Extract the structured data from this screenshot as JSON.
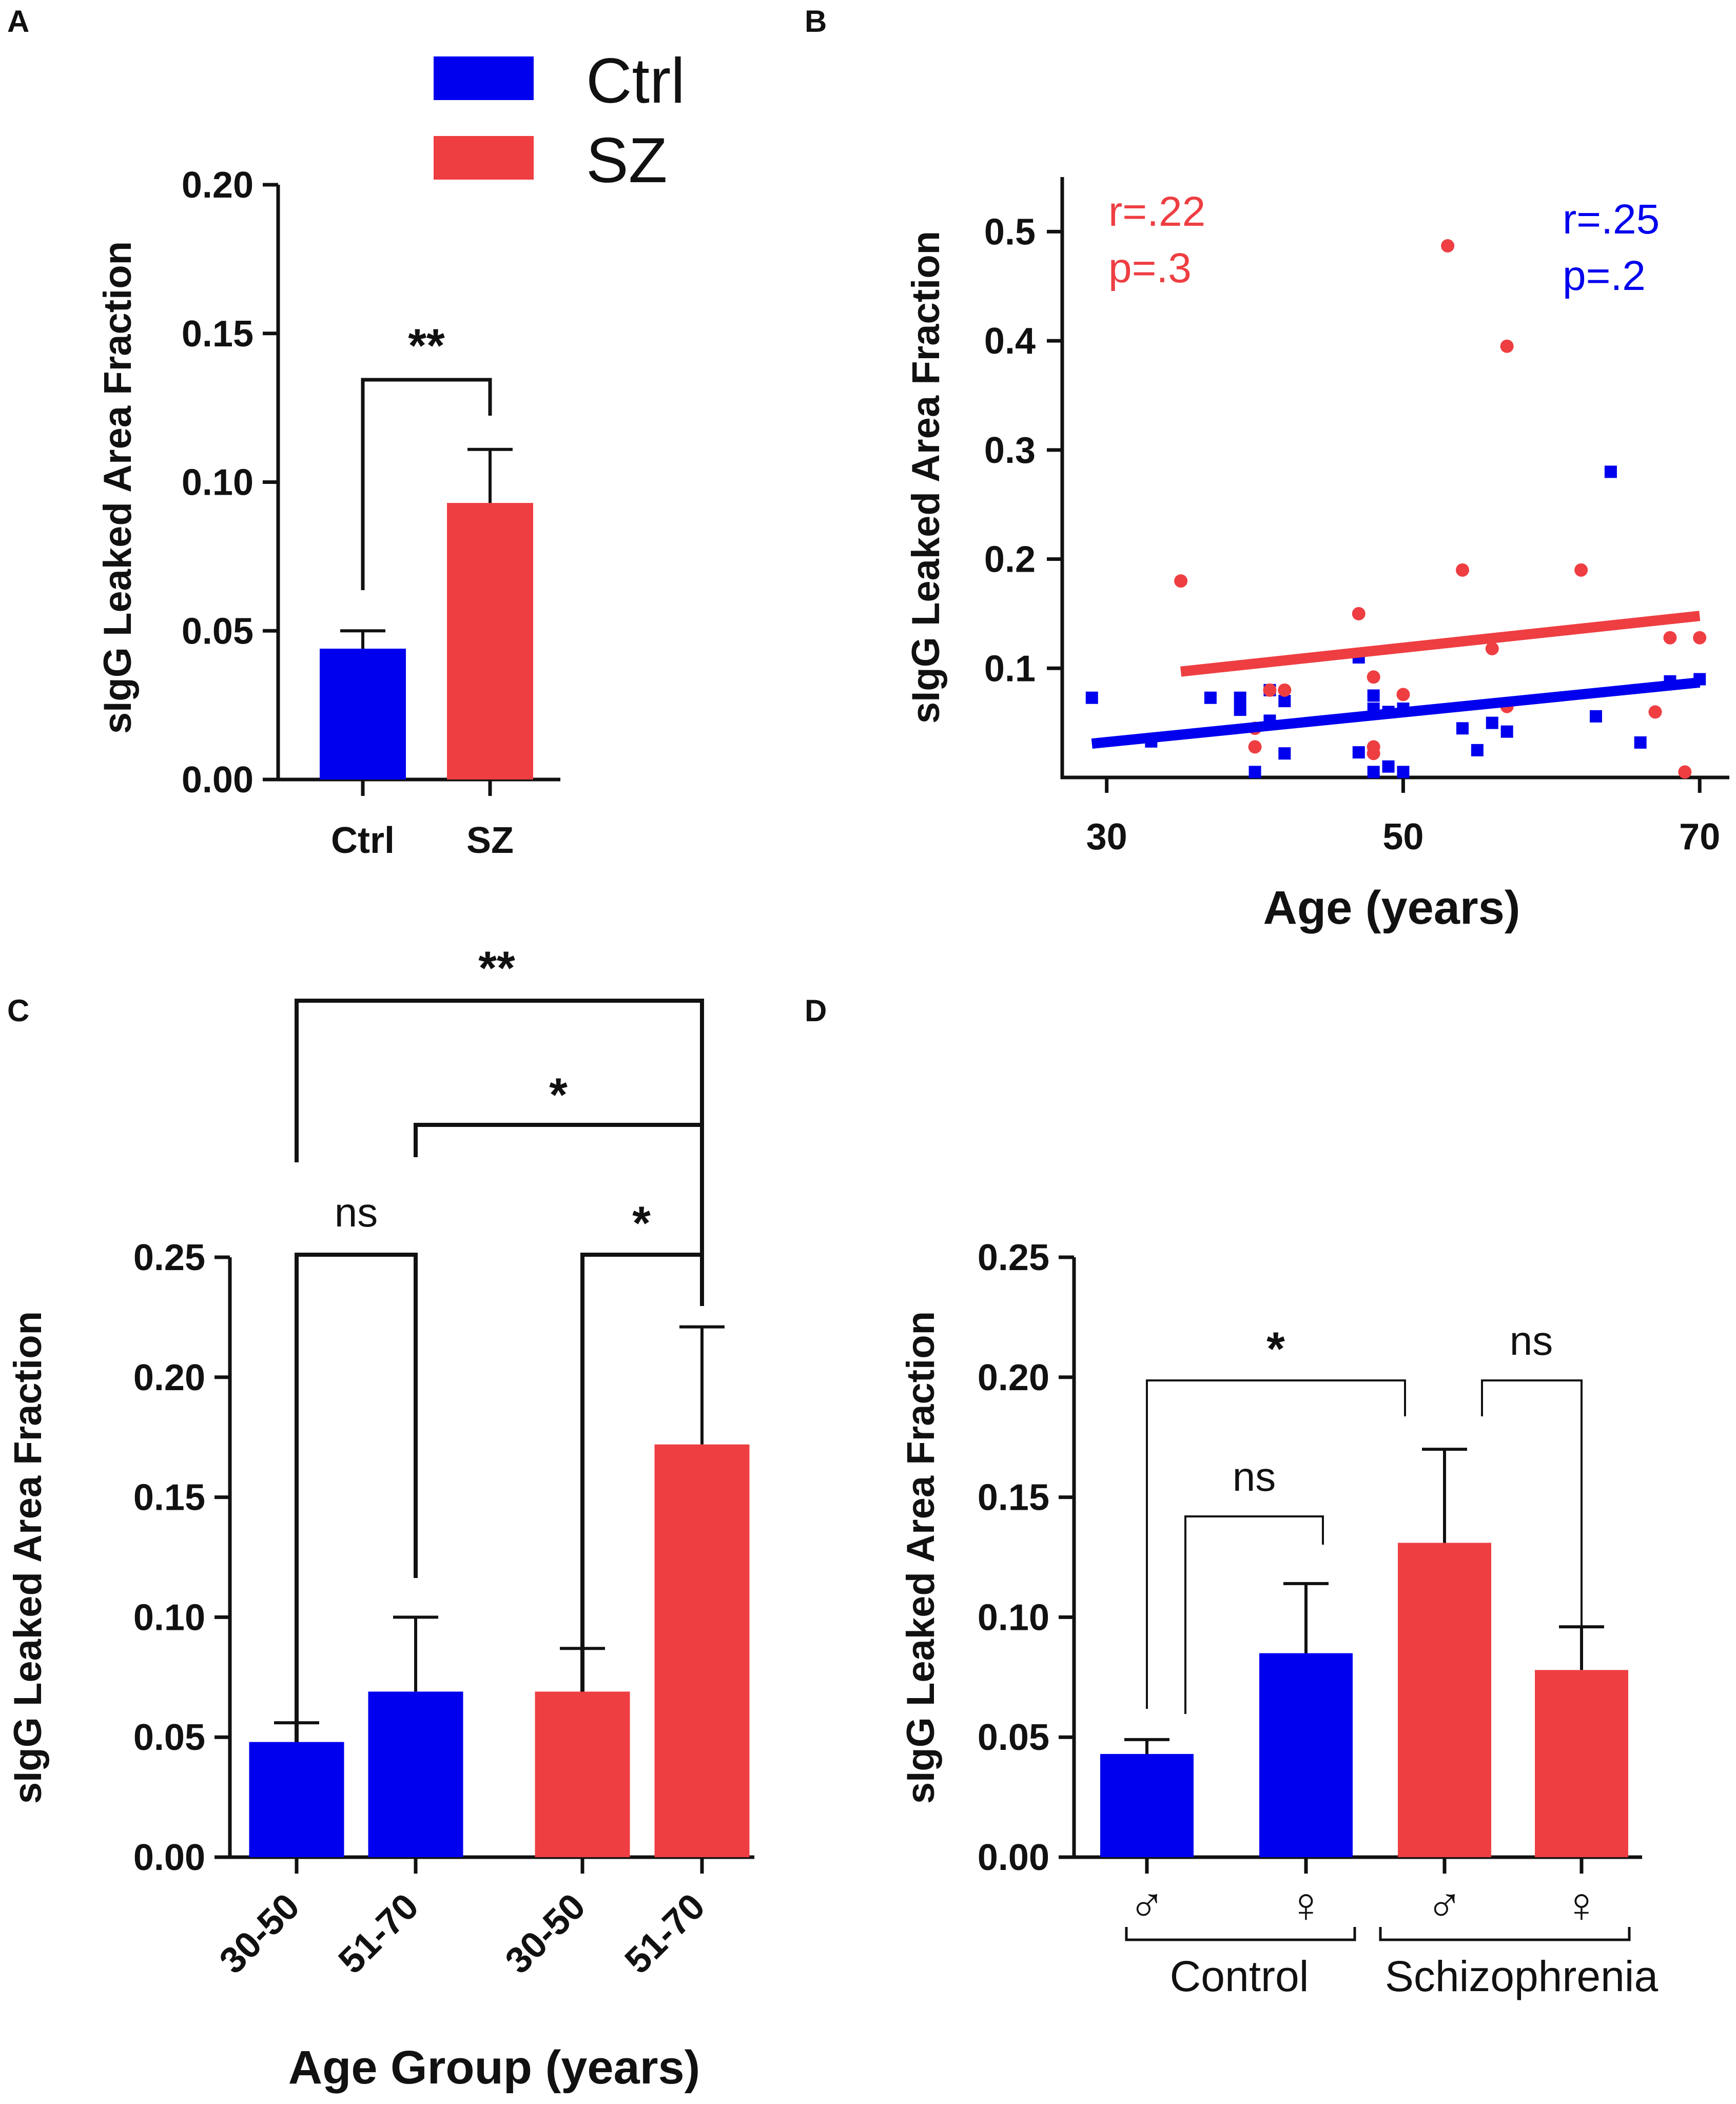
{
  "colors": {
    "ctrl": "#0000ee",
    "sz": "#ee3e42",
    "axis": "#111111"
  },
  "chart_data": [
    {
      "panel": "A",
      "type": "bar",
      "categories": [
        "Ctrl",
        "SZ"
      ],
      "values": [
        0.044,
        0.093
      ],
      "errors": [
        0.006,
        0.018
      ],
      "ylabel": "sIgG Leaked Area Fraction",
      "ylim": [
        0,
        0.2
      ],
      "yticks": [
        "0.00",
        "0.05",
        "0.10",
        "0.15",
        "0.20"
      ],
      "legend": [
        {
          "label": "Ctrl",
          "color": "#0000ee"
        },
        {
          "label": "SZ",
          "color": "#ee3e42"
        }
      ],
      "significance": [
        {
          "pair": [
            0,
            1
          ],
          "label": "**"
        }
      ]
    },
    {
      "panel": "B",
      "type": "scatter",
      "xlabel": "Age (years)",
      "ylabel": "sIgG Leaked Area Fraction",
      "xlim": [
        27,
        72
      ],
      "ylim": [
        0,
        0.55
      ],
      "xticks": [
        30,
        50,
        70
      ],
      "yticks": [
        "0.1",
        "0.2",
        "0.3",
        "0.4",
        "0.5"
      ],
      "series": [
        {
          "name": "Ctrl",
          "marker": "square",
          "color": "#0000ee",
          "points": [
            [
              29,
              0.073
            ],
            [
              33,
              0.033
            ],
            [
              37,
              0.073
            ],
            [
              39,
              0.073
            ],
            [
              39,
              0.062
            ],
            [
              40,
              0.005
            ],
            [
              41,
              0.052
            ],
            [
              41,
              0.08
            ],
            [
              42,
              0.022
            ],
            [
              42,
              0.07
            ],
            [
              47,
              0.11
            ],
            [
              47,
              0.023
            ],
            [
              48,
              0.075
            ],
            [
              48,
              0.005
            ],
            [
              48,
              0.063
            ],
            [
              49,
              0.01
            ],
            [
              49,
              0.06
            ],
            [
              50,
              0.005
            ],
            [
              50,
              0.063
            ],
            [
              54,
              0.045
            ],
            [
              55,
              0.025
            ],
            [
              56,
              0.05
            ],
            [
              57,
              0.042
            ],
            [
              63,
              0.056
            ],
            [
              64,
              0.28
            ],
            [
              66,
              0.032
            ],
            [
              68,
              0.088
            ],
            [
              70,
              0.09
            ]
          ],
          "fit": {
            "x": [
              29,
              70
            ],
            "y": [
              0.031,
              0.087
            ]
          },
          "stats": [
            "r=.25",
            "p=.2"
          ]
        },
        {
          "name": "SZ",
          "marker": "circle",
          "color": "#ee3e42",
          "points": [
            [
              35,
              0.18
            ],
            [
              40,
              0.045
            ],
            [
              40,
              0.028
            ],
            [
              41,
              0.08
            ],
            [
              42,
              0.08
            ],
            [
              47,
              0.15
            ],
            [
              48,
              0.092
            ],
            [
              48,
              0.028
            ],
            [
              48,
              0.022
            ],
            [
              50,
              0.076
            ],
            [
              53,
              0.487
            ],
            [
              54,
              0.19
            ],
            [
              56,
              0.118
            ],
            [
              57,
              0.395
            ],
            [
              57,
              0.065
            ],
            [
              62,
              0.19
            ],
            [
              67,
              0.06
            ],
            [
              68,
              0.128
            ],
            [
              69,
              0.005
            ],
            [
              70,
              0.128
            ]
          ],
          "fit": {
            "x": [
              35,
              70
            ],
            "y": [
              0.097,
              0.148
            ]
          },
          "stats": [
            "r=.22",
            "p=.3"
          ]
        }
      ]
    },
    {
      "panel": "C",
      "type": "bar",
      "categories": [
        "30-50",
        "51-70",
        "30-50",
        "51-70"
      ],
      "groups": [
        "Ctrl",
        "Ctrl",
        "SZ",
        "SZ"
      ],
      "values": [
        0.048,
        0.069,
        0.069,
        0.172
      ],
      "errors": [
        0.008,
        0.031,
        0.018,
        0.049
      ],
      "xlabel": "Age Group (years)",
      "ylabel": "sIgG Leaked Area Fraction",
      "ylim": [
        0,
        0.25
      ],
      "yticks": [
        "0.00",
        "0.05",
        "0.10",
        "0.15",
        "0.20",
        "0.25"
      ],
      "significance": [
        {
          "pair": [
            0,
            1
          ],
          "label": "ns"
        },
        {
          "pair": [
            2,
            3
          ],
          "label": "*"
        },
        {
          "pair": [
            1,
            3
          ],
          "label": "*"
        },
        {
          "pair": [
            0,
            3
          ],
          "label": "**"
        }
      ]
    },
    {
      "panel": "D",
      "type": "bar",
      "categories": [
        "♂",
        "♀",
        "♂",
        "♀"
      ],
      "groups": [
        "Control",
        "Schizophrenia"
      ],
      "values": [
        0.043,
        0.085,
        0.131,
        0.078
      ],
      "errors": [
        0.006,
        0.029,
        0.039,
        0.018
      ],
      "ylabel": "sIgG Leaked Area Fraction",
      "ylim": [
        0,
        0.25
      ],
      "yticks": [
        "0.00",
        "0.05",
        "0.10",
        "0.15",
        "0.20",
        "0.25"
      ],
      "significance": [
        {
          "pair": [
            0,
            1
          ],
          "label": "ns"
        },
        {
          "pair": [
            0,
            2
          ],
          "label": "*"
        },
        {
          "pair": [
            2,
            3
          ],
          "label": "ns"
        }
      ]
    }
  ]
}
